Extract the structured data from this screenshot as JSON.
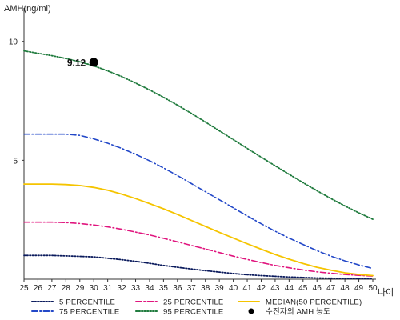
{
  "chart_data": {
    "type": "line",
    "ylabel": "AMH(ng/ml)",
    "xlabel": "나이",
    "x": [
      25,
      26,
      27,
      28,
      29,
      30,
      31,
      32,
      33,
      34,
      35,
      36,
      37,
      38,
      39,
      40,
      41,
      42,
      43,
      44,
      45,
      46,
      47,
      48,
      49,
      50
    ],
    "xlim": [
      25,
      50
    ],
    "ylim": [
      0,
      11
    ],
    "yticks": [
      5,
      10
    ],
    "grid": false,
    "legend_position": "bottom",
    "series": [
      {
        "name": "5 PERCENTILE",
        "color": "#0a1a5c",
        "style": "dotted",
        "values": [
          1.0,
          1.0,
          1.0,
          0.98,
          0.96,
          0.94,
          0.88,
          0.82,
          0.75,
          0.67,
          0.58,
          0.5,
          0.43,
          0.36,
          0.3,
          0.24,
          0.19,
          0.15,
          0.12,
          0.09,
          0.07,
          0.05,
          0.04,
          0.03,
          0.03,
          0.02
        ]
      },
      {
        "name": "25 PERCENTILE",
        "color": "#e0157e",
        "style": "dashdot",
        "values": [
          2.4,
          2.4,
          2.4,
          2.38,
          2.34,
          2.28,
          2.2,
          2.1,
          1.98,
          1.86,
          1.72,
          1.57,
          1.42,
          1.27,
          1.12,
          0.97,
          0.83,
          0.7,
          0.58,
          0.48,
          0.39,
          0.31,
          0.25,
          0.2,
          0.16,
          0.13
        ]
      },
      {
        "name": "75 PERCENTILE",
        "color": "#2348c8",
        "style": "dashdot",
        "values": [
          6.1,
          6.1,
          6.1,
          6.1,
          6.05,
          5.9,
          5.72,
          5.5,
          5.25,
          4.98,
          4.68,
          4.36,
          4.02,
          3.68,
          3.34,
          3.0,
          2.66,
          2.33,
          2.02,
          1.73,
          1.46,
          1.2,
          0.97,
          0.77,
          0.6,
          0.45
        ]
      },
      {
        "name": "MEDIAN(50 PERCENTILE)",
        "color": "#f5c400",
        "style": "solid",
        "values": [
          4.0,
          4.0,
          4.0,
          3.98,
          3.94,
          3.86,
          3.74,
          3.58,
          3.39,
          3.18,
          2.96,
          2.72,
          2.47,
          2.22,
          1.97,
          1.73,
          1.49,
          1.26,
          1.04,
          0.84,
          0.66,
          0.5,
          0.38,
          0.27,
          0.2,
          0.15
        ]
      },
      {
        "name": "95 PERCENTILE",
        "color": "#1e7a3c",
        "style": "dotted",
        "values": [
          9.6,
          9.5,
          9.4,
          9.28,
          9.14,
          8.97,
          8.76,
          8.52,
          8.25,
          7.96,
          7.65,
          7.32,
          6.97,
          6.61,
          6.24,
          5.87,
          5.5,
          5.13,
          4.77,
          4.41,
          4.06,
          3.72,
          3.39,
          3.08,
          2.79,
          2.52
        ]
      }
    ],
    "points": [
      {
        "name": "수진자의 AMH 농도",
        "x": 30,
        "y": 9.12,
        "label": "9.12",
        "color": "#000000"
      }
    ]
  }
}
